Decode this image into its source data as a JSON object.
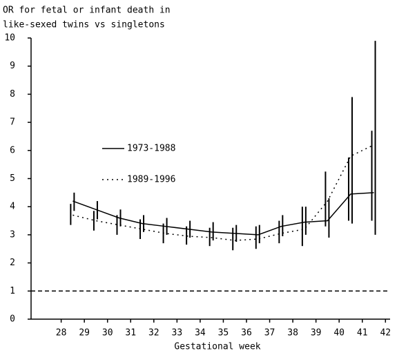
{
  "chart_data": {
    "type": "line",
    "title": [
      "OR for fetal or infant death in",
      "like-sexed twins vs singletons"
    ],
    "xlabel": "Gestational week",
    "x": [
      28.5,
      29.5,
      30.5,
      31.5,
      32.5,
      33.5,
      34.5,
      35.5,
      36.5,
      37.5,
      38.5,
      39.5,
      40.5,
      41.5
    ],
    "series": [
      {
        "name": "1973-1988",
        "color": "#000000",
        "dash": "solid",
        "values": [
          4.2,
          3.9,
          3.6,
          3.4,
          3.3,
          3.2,
          3.1,
          3.05,
          3.0,
          3.3,
          3.45,
          3.5,
          4.45,
          4.5
        ],
        "lower": [
          3.85,
          3.55,
          3.3,
          3.1,
          3.0,
          2.9,
          2.8,
          2.75,
          2.7,
          2.95,
          3.0,
          2.9,
          3.4,
          3.0
        ],
        "upper": [
          4.5,
          4.2,
          3.9,
          3.7,
          3.6,
          3.5,
          3.45,
          3.35,
          3.35,
          3.7,
          4.0,
          4.3,
          7.9,
          9.9
        ]
      },
      {
        "name": "1989-1996",
        "color": "#000000",
        "dash": "dotted",
        "values": [
          3.7,
          3.5,
          3.35,
          3.2,
          3.05,
          2.95,
          2.9,
          2.8,
          2.85,
          3.05,
          3.2,
          4.2,
          5.8,
          6.2
        ],
        "lower": [
          3.35,
          3.15,
          3.0,
          2.85,
          2.7,
          2.65,
          2.6,
          2.45,
          2.5,
          2.7,
          2.6,
          3.3,
          3.5,
          3.5
        ],
        "upper": [
          4.1,
          3.85,
          3.7,
          3.55,
          3.4,
          3.3,
          3.25,
          3.25,
          3.3,
          3.5,
          4.0,
          5.25,
          5.75,
          6.7
        ]
      }
    ],
    "reference_line": 1,
    "xlim": [
      26.7,
      42.2
    ],
    "ylim": [
      0,
      10
    ],
    "xticks": [
      28,
      29,
      30,
      31,
      32,
      33,
      34,
      35,
      36,
      37,
      38,
      39,
      40,
      41,
      42
    ],
    "yticks": [
      0,
      1,
      2,
      3,
      4,
      5,
      6,
      7,
      8,
      9,
      10
    ]
  }
}
